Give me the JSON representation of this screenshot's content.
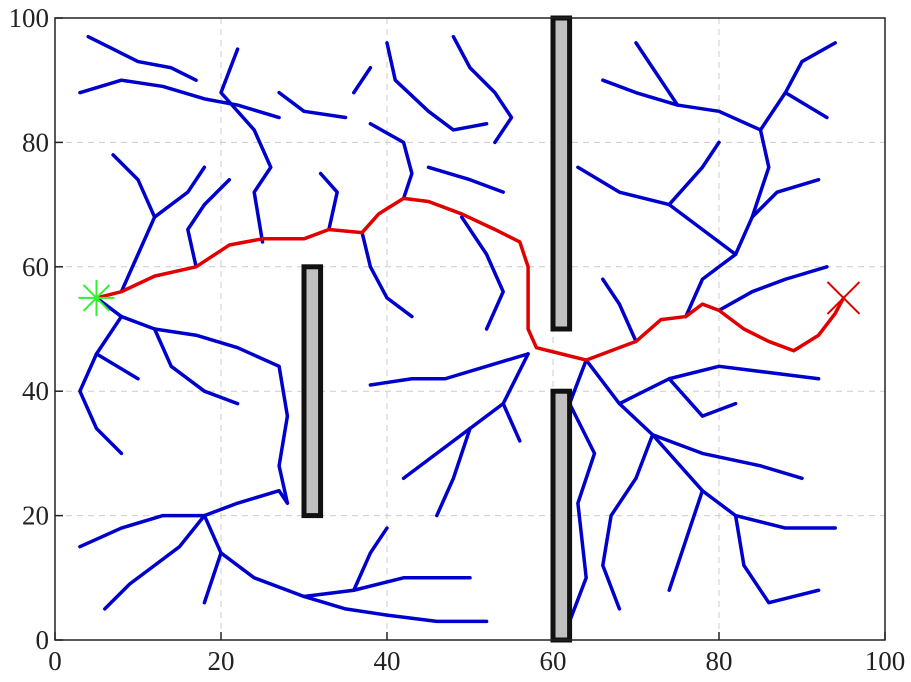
{
  "chart_data": {
    "type": "line",
    "xlim": [
      0,
      100
    ],
    "ylim": [
      0,
      100
    ],
    "xticks": [
      0,
      20,
      40,
      60,
      80,
      100
    ],
    "yticks": [
      0,
      20,
      40,
      60,
      80,
      100
    ],
    "grid": true,
    "tree_color": "#0000cc",
    "path_color": "#e00000",
    "obstacle_color": "#c0c0c0",
    "obstacles": [
      {
        "x": [
          30,
          32
        ],
        "y": [
          20,
          60
        ]
      },
      {
        "x": [
          60,
          62
        ],
        "y": [
          50,
          100
        ]
      },
      {
        "x": [
          60,
          62
        ],
        "y": [
          0,
          40
        ]
      }
    ],
    "start": {
      "x": 5,
      "y": 55,
      "color": "#33ee33"
    },
    "goal": {
      "x": 95,
      "y": 55,
      "color": "#e00000"
    },
    "tree": [
      {
        "x": [
          8,
          10,
          12,
          10,
          7
        ],
        "y": [
          56,
          62,
          68,
          74,
          78
        ]
      },
      {
        "x": [
          12,
          16,
          18
        ],
        "y": [
          68,
          72,
          76
        ]
      },
      {
        "x": [
          3,
          8,
          13,
          18,
          22,
          27
        ],
        "y": [
          88,
          90,
          89,
          87,
          86,
          84
        ]
      },
      {
        "x": [
          4,
          7,
          10,
          14,
          17
        ],
        "y": [
          97,
          95,
          93,
          92,
          90
        ]
      },
      {
        "x": [
          22,
          20,
          24,
          26,
          24,
          25
        ],
        "y": [
          95,
          88,
          82,
          76,
          72,
          64
        ]
      },
      {
        "x": [
          27,
          30,
          35
        ],
        "y": [
          88,
          85,
          84
        ]
      },
      {
        "x": [
          17,
          16,
          18,
          21
        ],
        "y": [
          60,
          66,
          70,
          74
        ]
      },
      {
        "x": [
          40,
          41,
          45,
          48,
          52
        ],
        "y": [
          96,
          90,
          85,
          82,
          83
        ]
      },
      {
        "x": [
          38,
          42,
          43,
          42
        ],
        "y": [
          83,
          80,
          75,
          71
        ]
      },
      {
        "x": [
          36,
          38
        ],
        "y": [
          88,
          92
        ]
      },
      {
        "x": [
          48,
          50,
          53,
          55,
          53
        ],
        "y": [
          97,
          92,
          88,
          84,
          80
        ]
      },
      {
        "x": [
          45,
          50,
          54
        ],
        "y": [
          76,
          74,
          72
        ]
      },
      {
        "x": [
          49,
          52,
          54,
          52
        ],
        "y": [
          68,
          62,
          56,
          50
        ]
      },
      {
        "x": [
          37,
          38,
          40,
          43
        ],
        "y": [
          65.5,
          60,
          55,
          52
        ]
      },
      {
        "x": [
          33,
          34,
          32
        ],
        "y": [
          66,
          72,
          75
        ]
      },
      {
        "x": [
          5,
          8,
          12,
          17,
          22,
          27,
          28,
          27,
          28
        ],
        "y": [
          55,
          52,
          50,
          49,
          47,
          44,
          36,
          28,
          22
        ]
      },
      {
        "x": [
          8,
          5,
          3,
          5,
          8
        ],
        "y": [
          52,
          46,
          40,
          34,
          30
        ]
      },
      {
        "x": [
          12,
          14,
          18,
          22
        ],
        "y": [
          50,
          44,
          40,
          38
        ]
      },
      {
        "x": [
          5,
          10
        ],
        "y": [
          46,
          42
        ]
      },
      {
        "x": [
          18,
          13,
          8,
          3
        ],
        "y": [
          20,
          20,
          18,
          15
        ]
      },
      {
        "x": [
          18,
          22,
          27,
          28
        ],
        "y": [
          20,
          22,
          24,
          22
        ]
      },
      {
        "x": [
          18,
          15,
          12,
          9,
          6
        ],
        "y": [
          20,
          15,
          12,
          9,
          5
        ]
      },
      {
        "x": [
          18,
          20,
          24,
          30,
          36,
          42,
          50
        ],
        "y": [
          20,
          14,
          10,
          7,
          8,
          10,
          10
        ]
      },
      {
        "x": [
          30,
          35,
          40,
          46,
          52
        ],
        "y": [
          7,
          5,
          4,
          3,
          3
        ]
      },
      {
        "x": [
          36,
          38,
          40
        ],
        "y": [
          8,
          14,
          18
        ]
      },
      {
        "x": [
          20,
          18
        ],
        "y": [
          14,
          6
        ]
      },
      {
        "x": [
          57,
          52,
          47,
          43,
          38
        ],
        "y": [
          46,
          44,
          42,
          42,
          41
        ]
      },
      {
        "x": [
          57,
          54,
          50,
          46,
          42
        ],
        "y": [
          46,
          38,
          34,
          30,
          26
        ]
      },
      {
        "x": [
          50,
          48,
          46
        ],
        "y": [
          34,
          26,
          20
        ]
      },
      {
        "x": [
          54,
          56
        ],
        "y": [
          38,
          32
        ]
      },
      {
        "x": [
          64,
          68,
          72,
          78,
          85,
          90
        ],
        "y": [
          45,
          38,
          33,
          30,
          28,
          26
        ]
      },
      {
        "x": [
          72,
          70,
          67,
          66,
          68
        ],
        "y": [
          33,
          26,
          20,
          12,
          5
        ]
      },
      {
        "x": [
          72,
          78,
          82,
          88,
          94
        ],
        "y": [
          33,
          24,
          20,
          18,
          18
        ]
      },
      {
        "x": [
          82,
          83,
          86,
          92
        ],
        "y": [
          20,
          12,
          6,
          8
        ]
      },
      {
        "x": [
          78,
          76,
          74
        ],
        "y": [
          24,
          16,
          8
        ]
      },
      {
        "x": [
          64,
          62,
          65,
          63,
          64,
          62
        ],
        "y": [
          45,
          38,
          30,
          22,
          10,
          3
        ]
      },
      {
        "x": [
          68,
          74,
          80,
          86,
          92
        ],
        "y": [
          38,
          42,
          44,
          43,
          42
        ]
      },
      {
        "x": [
          74,
          78,
          82
        ],
        "y": [
          42,
          36,
          38
        ]
      },
      {
        "x": [
          76,
          78,
          82,
          84,
          87,
          92
        ],
        "y": [
          52,
          58,
          62,
          68,
          72,
          74
        ]
      },
      {
        "x": [
          82,
          78,
          74,
          68,
          63
        ],
        "y": [
          62,
          66,
          70,
          72,
          76
        ]
      },
      {
        "x": [
          84,
          86,
          85,
          88,
          90,
          94
        ],
        "y": [
          68,
          76,
          82,
          88,
          93,
          96
        ]
      },
      {
        "x": [
          85,
          80,
          75,
          70,
          66
        ],
        "y": [
          82,
          85,
          86,
          88,
          90
        ]
      },
      {
        "x": [
          75,
          72,
          70
        ],
        "y": [
          86,
          92,
          96
        ]
      },
      {
        "x": [
          88,
          93
        ],
        "y": [
          88,
          84
        ]
      },
      {
        "x": [
          74,
          78,
          80
        ],
        "y": [
          70,
          76,
          80
        ]
      },
      {
        "x": [
          70,
          68,
          66
        ],
        "y": [
          48,
          54,
          58
        ]
      },
      {
        "x": [
          80,
          84,
          88,
          93
        ],
        "y": [
          53,
          56,
          58,
          60
        ]
      }
    ],
    "path": {
      "x": [
        5,
        8,
        12,
        17,
        21,
        25,
        30,
        33,
        37,
        39,
        42,
        45,
        49,
        53,
        56,
        57,
        57,
        57,
        58,
        61,
        64,
        67,
        70,
        73,
        76,
        78,
        80,
        83,
        86,
        89,
        92,
        94,
        95
      ],
      "y": [
        55,
        56,
        58.5,
        60,
        63.5,
        64.5,
        64.5,
        66,
        65.5,
        68.5,
        71,
        70.5,
        68.5,
        66,
        64,
        60,
        54,
        50,
        47,
        46,
        45,
        46.5,
        48,
        51.5,
        52,
        54,
        53,
        50,
        48,
        46.5,
        49,
        52.5,
        55
      ]
    }
  }
}
